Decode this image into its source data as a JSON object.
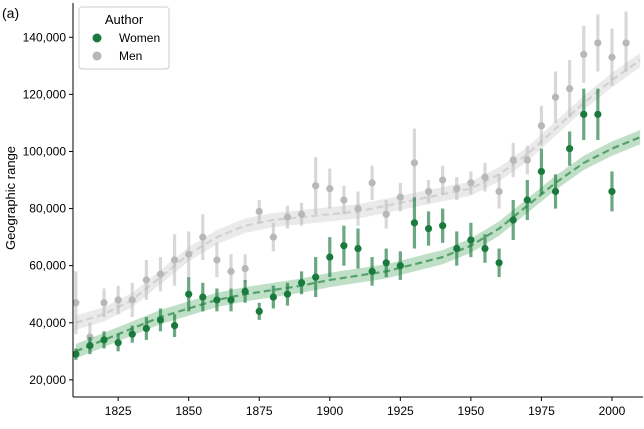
{
  "chart_data": {
    "type": "scatter",
    "panel_label": "(a)",
    "xlabel": "",
    "ylabel": "Geographic range",
    "xlim": [
      1809,
      2011
    ],
    "ylim": [
      14000,
      152000
    ],
    "x_ticks": [
      1825,
      1850,
      1875,
      1900,
      1925,
      1950,
      1975,
      2000
    ],
    "y_ticks": [
      20000,
      40000,
      60000,
      80000,
      100000,
      120000,
      140000
    ],
    "y_tick_labels": [
      "20,000",
      "40,000",
      "60,000",
      "80,000",
      "100,000",
      "120,000",
      "140,000"
    ],
    "grid": false,
    "legend": {
      "title": "Author",
      "placement": "top-left"
    },
    "series": [
      {
        "name": "Men",
        "color": "#b8b8b8",
        "points": [
          {
            "x": 1810,
            "y": 47000,
            "lo": 36000,
            "hi": 58000
          },
          {
            "x": 1815,
            "y": 35000,
            "lo": 30000,
            "hi": 40000
          },
          {
            "x": 1820,
            "y": 47000,
            "lo": 42000,
            "hi": 52000
          },
          {
            "x": 1825,
            "y": 48000,
            "lo": 43000,
            "hi": 53000
          },
          {
            "x": 1830,
            "y": 48000,
            "lo": 42000,
            "hi": 54000
          },
          {
            "x": 1835,
            "y": 55000,
            "lo": 48000,
            "hi": 62000
          },
          {
            "x": 1840,
            "y": 57000,
            "lo": 51000,
            "hi": 63000
          },
          {
            "x": 1845,
            "y": 62000,
            "lo": 53000,
            "hi": 71000
          },
          {
            "x": 1850,
            "y": 64000,
            "lo": 56000,
            "hi": 72000
          },
          {
            "x": 1855,
            "y": 70000,
            "lo": 62000,
            "hi": 78000
          },
          {
            "x": 1860,
            "y": 62000,
            "lo": 56000,
            "hi": 68000
          },
          {
            "x": 1865,
            "y": 58000,
            "lo": 52000,
            "hi": 64000
          },
          {
            "x": 1870,
            "y": 59000,
            "lo": 54000,
            "hi": 64000
          },
          {
            "x": 1875,
            "y": 79000,
            "lo": 75000,
            "hi": 83000
          },
          {
            "x": 1880,
            "y": 70000,
            "lo": 65000,
            "hi": 75000
          },
          {
            "x": 1885,
            "y": 77000,
            "lo": 73000,
            "hi": 81000
          },
          {
            "x": 1890,
            "y": 78000,
            "lo": 74000,
            "hi": 82000
          },
          {
            "x": 1895,
            "y": 88000,
            "lo": 78000,
            "hi": 98000
          },
          {
            "x": 1900,
            "y": 87000,
            "lo": 80000,
            "hi": 94000
          },
          {
            "x": 1905,
            "y": 83000,
            "lo": 78000,
            "hi": 88000
          },
          {
            "x": 1910,
            "y": 80000,
            "lo": 74000,
            "hi": 86000
          },
          {
            "x": 1915,
            "y": 89000,
            "lo": 83000,
            "hi": 95000
          },
          {
            "x": 1920,
            "y": 78000,
            "lo": 73000,
            "hi": 83000
          },
          {
            "x": 1925,
            "y": 84000,
            "lo": 79000,
            "hi": 89000
          },
          {
            "x": 1930,
            "y": 96000,
            "lo": 84000,
            "hi": 108000
          },
          {
            "x": 1935,
            "y": 86000,
            "lo": 82000,
            "hi": 90000
          },
          {
            "x": 1940,
            "y": 90000,
            "lo": 85000,
            "hi": 95000
          },
          {
            "x": 1945,
            "y": 87000,
            "lo": 83000,
            "hi": 91000
          },
          {
            "x": 1950,
            "y": 89000,
            "lo": 85000,
            "hi": 93000
          },
          {
            "x": 1955,
            "y": 91000,
            "lo": 86000,
            "hi": 96000
          },
          {
            "x": 1960,
            "y": 86000,
            "lo": 80000,
            "hi": 92000
          },
          {
            "x": 1965,
            "y": 97000,
            "lo": 91000,
            "hi": 103000
          },
          {
            "x": 1970,
            "y": 97000,
            "lo": 92000,
            "hi": 102000
          },
          {
            "x": 1975,
            "y": 109000,
            "lo": 102000,
            "hi": 116000
          },
          {
            "x": 1980,
            "y": 119000,
            "lo": 110000,
            "hi": 128000
          },
          {
            "x": 1985,
            "y": 122000,
            "lo": 112000,
            "hi": 132000
          },
          {
            "x": 1990,
            "y": 134000,
            "lo": 124000,
            "hi": 144000
          },
          {
            "x": 1995,
            "y": 138000,
            "lo": 128000,
            "hi": 148000
          },
          {
            "x": 2000,
            "y": 133000,
            "lo": 123000,
            "hi": 143000
          },
          {
            "x": 2005,
            "y": 138000,
            "lo": 128000,
            "hi": 149000
          }
        ],
        "trend": [
          {
            "x": 1810,
            "y": 40000
          },
          {
            "x": 1820,
            "y": 43000
          },
          {
            "x": 1830,
            "y": 48000
          },
          {
            "x": 1840,
            "y": 56000
          },
          {
            "x": 1850,
            "y": 64000
          },
          {
            "x": 1860,
            "y": 70000
          },
          {
            "x": 1870,
            "y": 74000
          },
          {
            "x": 1880,
            "y": 76000
          },
          {
            "x": 1890,
            "y": 77000
          },
          {
            "x": 1900,
            "y": 78000
          },
          {
            "x": 1910,
            "y": 79000
          },
          {
            "x": 1920,
            "y": 81000
          },
          {
            "x": 1930,
            "y": 83000
          },
          {
            "x": 1940,
            "y": 85000
          },
          {
            "x": 1950,
            "y": 87000
          },
          {
            "x": 1960,
            "y": 92000
          },
          {
            "x": 1970,
            "y": 99000
          },
          {
            "x": 1980,
            "y": 108000
          },
          {
            "x": 1990,
            "y": 117000
          },
          {
            "x": 2000,
            "y": 125000
          },
          {
            "x": 2010,
            "y": 132000
          }
        ],
        "band": 2500
      },
      {
        "name": "Women",
        "color": "#1a7a3e",
        "points": [
          {
            "x": 1810,
            "y": 29000,
            "lo": 27000,
            "hi": 31000
          },
          {
            "x": 1815,
            "y": 32000,
            "lo": 29000,
            "hi": 35000
          },
          {
            "x": 1820,
            "y": 34000,
            "lo": 31000,
            "hi": 37000
          },
          {
            "x": 1825,
            "y": 33000,
            "lo": 30000,
            "hi": 36000
          },
          {
            "x": 1830,
            "y": 36000,
            "lo": 33000,
            "hi": 39000
          },
          {
            "x": 1835,
            "y": 38000,
            "lo": 34000,
            "hi": 42000
          },
          {
            "x": 1840,
            "y": 41000,
            "lo": 37000,
            "hi": 45000
          },
          {
            "x": 1845,
            "y": 39000,
            "lo": 35000,
            "hi": 43000
          },
          {
            "x": 1850,
            "y": 50000,
            "lo": 44000,
            "hi": 56000
          },
          {
            "x": 1855,
            "y": 49000,
            "lo": 44000,
            "hi": 54000
          },
          {
            "x": 1860,
            "y": 48000,
            "lo": 44000,
            "hi": 52000
          },
          {
            "x": 1865,
            "y": 48000,
            "lo": 44000,
            "hi": 52000
          },
          {
            "x": 1870,
            "y": 51000,
            "lo": 47000,
            "hi": 55000
          },
          {
            "x": 1875,
            "y": 44000,
            "lo": 41000,
            "hi": 47000
          },
          {
            "x": 1880,
            "y": 49000,
            "lo": 45000,
            "hi": 53000
          },
          {
            "x": 1885,
            "y": 50000,
            "lo": 46000,
            "hi": 54000
          },
          {
            "x": 1890,
            "y": 54000,
            "lo": 50000,
            "hi": 58000
          },
          {
            "x": 1895,
            "y": 56000,
            "lo": 49000,
            "hi": 63000
          },
          {
            "x": 1900,
            "y": 63000,
            "lo": 56000,
            "hi": 70000
          },
          {
            "x": 1905,
            "y": 67000,
            "lo": 60000,
            "hi": 74000
          },
          {
            "x": 1910,
            "y": 66000,
            "lo": 59000,
            "hi": 73000
          },
          {
            "x": 1915,
            "y": 58000,
            "lo": 53000,
            "hi": 63000
          },
          {
            "x": 1920,
            "y": 61000,
            "lo": 56000,
            "hi": 66000
          },
          {
            "x": 1925,
            "y": 60000,
            "lo": 55000,
            "hi": 65000
          },
          {
            "x": 1930,
            "y": 75000,
            "lo": 66000,
            "hi": 84000
          },
          {
            "x": 1935,
            "y": 73000,
            "lo": 67000,
            "hi": 79000
          },
          {
            "x": 1940,
            "y": 74000,
            "lo": 68000,
            "hi": 80000
          },
          {
            "x": 1945,
            "y": 66000,
            "lo": 60000,
            "hi": 72000
          },
          {
            "x": 1950,
            "y": 69000,
            "lo": 63000,
            "hi": 75000
          },
          {
            "x": 1955,
            "y": 66000,
            "lo": 61000,
            "hi": 71000
          },
          {
            "x": 1960,
            "y": 61000,
            "lo": 56000,
            "hi": 66000
          },
          {
            "x": 1965,
            "y": 76000,
            "lo": 69000,
            "hi": 83000
          },
          {
            "x": 1970,
            "y": 83000,
            "lo": 76000,
            "hi": 90000
          },
          {
            "x": 1975,
            "y": 93000,
            "lo": 85000,
            "hi": 101000
          },
          {
            "x": 1980,
            "y": 86000,
            "lo": 80000,
            "hi": 92000
          },
          {
            "x": 1985,
            "y": 101000,
            "lo": 95000,
            "hi": 107000
          },
          {
            "x": 1990,
            "y": 113000,
            "lo": 104000,
            "hi": 122000
          },
          {
            "x": 1995,
            "y": 113000,
            "lo": 104000,
            "hi": 122000
          },
          {
            "x": 2000,
            "y": 86000,
            "lo": 79000,
            "hi": 93000
          }
        ],
        "trend": [
          {
            "x": 1810,
            "y": 30000
          },
          {
            "x": 1820,
            "y": 34000
          },
          {
            "x": 1830,
            "y": 38000
          },
          {
            "x": 1840,
            "y": 42000
          },
          {
            "x": 1850,
            "y": 45000
          },
          {
            "x": 1860,
            "y": 48000
          },
          {
            "x": 1870,
            "y": 50000
          },
          {
            "x": 1880,
            "y": 51500
          },
          {
            "x": 1890,
            "y": 53000
          },
          {
            "x": 1900,
            "y": 55000
          },
          {
            "x": 1910,
            "y": 56500
          },
          {
            "x": 1920,
            "y": 58000
          },
          {
            "x": 1930,
            "y": 60500
          },
          {
            "x": 1940,
            "y": 63000
          },
          {
            "x": 1950,
            "y": 67000
          },
          {
            "x": 1960,
            "y": 73000
          },
          {
            "x": 1970,
            "y": 81000
          },
          {
            "x": 1980,
            "y": 89000
          },
          {
            "x": 1990,
            "y": 96000
          },
          {
            "x": 2000,
            "y": 101000
          },
          {
            "x": 2010,
            "y": 105000
          }
        ],
        "band": 2500
      }
    ]
  }
}
